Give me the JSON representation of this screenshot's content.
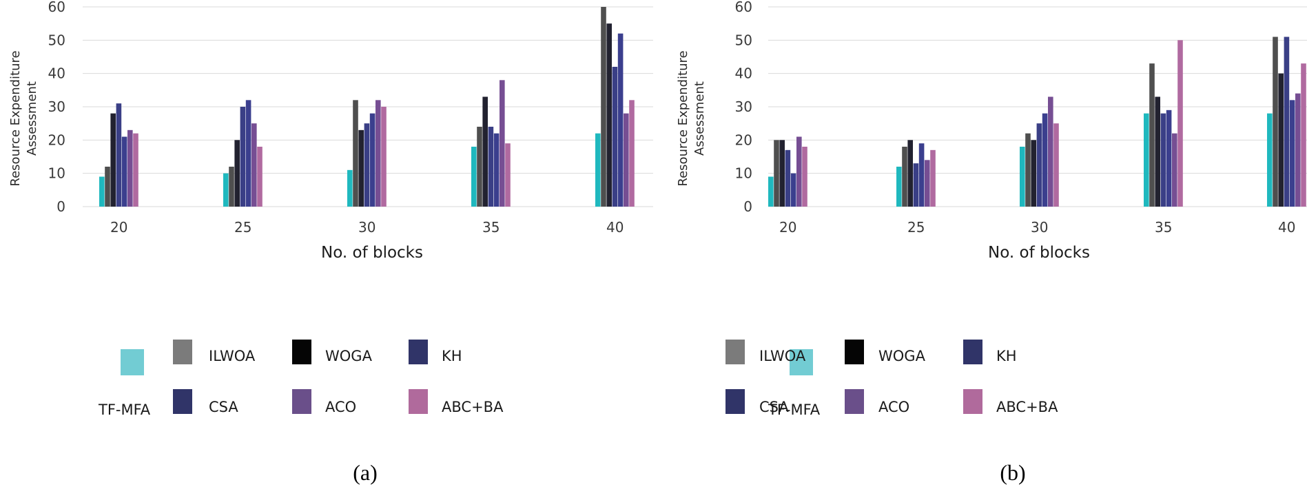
{
  "chart_data": [
    {
      "type": "bar",
      "caption": "(a)",
      "categories": [
        "20",
        "25",
        "30",
        "35",
        "40"
      ],
      "xlabel": "No. of blocks",
      "ylabel_lines": [
        "Resource Expenditure",
        "Assessment"
      ],
      "ylim": [
        0,
        60
      ],
      "yticks": [
        "0",
        "10",
        "20",
        "30",
        "40",
        "50",
        "60"
      ],
      "grid": true,
      "series": [
        {
          "name": "TF-MFA",
          "color": "#1fb8be",
          "values": [
            9,
            10,
            11,
            18,
            22
          ]
        },
        {
          "name": "ILWOA",
          "color": "#4f4f4f",
          "values": [
            12,
            12,
            32,
            24,
            60
          ]
        },
        {
          "name": "WOGA",
          "color": "#222230",
          "values": [
            28,
            20,
            23,
            33,
            55
          ]
        },
        {
          "name": "KH",
          "color": "#3a3f86",
          "values": [
            31,
            30,
            25,
            24,
            42
          ]
        },
        {
          "name": "CSA",
          "color": "#3b3f8e",
          "values": [
            21,
            32,
            28,
            22,
            52
          ]
        },
        {
          "name": "ACO",
          "color": "#764e93",
          "values": [
            23,
            25,
            32,
            38,
            28
          ]
        },
        {
          "name": "ABC+BA",
          "color": "#b06aa0",
          "values": [
            22,
            18,
            30,
            19,
            32
          ]
        }
      ]
    },
    {
      "type": "bar",
      "caption": "(b)",
      "categories": [
        "20",
        "25",
        "30",
        "35",
        "40"
      ],
      "xlabel": "No. of blocks",
      "ylabel_lines": [
        "Resource Expenditure",
        "Assessment"
      ],
      "ylim": [
        0,
        60
      ],
      "yticks": [
        "0",
        "10",
        "20",
        "30",
        "40",
        "50",
        "60"
      ],
      "grid": true,
      "series": [
        {
          "name": "TF-MFA",
          "color": "#1fb8be",
          "values": [
            9,
            12,
            18,
            28,
            28
          ]
        },
        {
          "name": "ILWOA",
          "color": "#4f4f4f",
          "values": [
            20,
            18,
            22,
            43,
            51
          ]
        },
        {
          "name": "WOGA",
          "color": "#222230",
          "values": [
            20,
            20,
            20,
            33,
            40
          ]
        },
        {
          "name": "KH",
          "color": "#3a3f86",
          "values": [
            17,
            13,
            25,
            28,
            51
          ]
        },
        {
          "name": "CSA",
          "color": "#3b3f8e",
          "values": [
            10,
            19,
            28,
            29,
            32
          ]
        },
        {
          "name": "ACO",
          "color": "#764e93",
          "values": [
            21,
            14,
            33,
            22,
            34
          ]
        },
        {
          "name": "ABC+BA",
          "color": "#b06aa0",
          "values": [
            18,
            17,
            25,
            50,
            43
          ]
        }
      ]
    }
  ],
  "legend": {
    "items": [
      {
        "label": "TF-MFA",
        "swatch": "#72ccd3"
      },
      {
        "label": "ILWOA",
        "swatch": "#7b7b7b"
      },
      {
        "label": "WOGA",
        "swatch": "#050505"
      },
      {
        "label": "KH",
        "swatch": "#303468"
      },
      {
        "label": "CSA",
        "swatch": "#303468"
      },
      {
        "label": "ACO",
        "swatch": "#6a4f8a"
      },
      {
        "label": "ABC+BA",
        "swatch": "#b06a9c"
      }
    ]
  }
}
